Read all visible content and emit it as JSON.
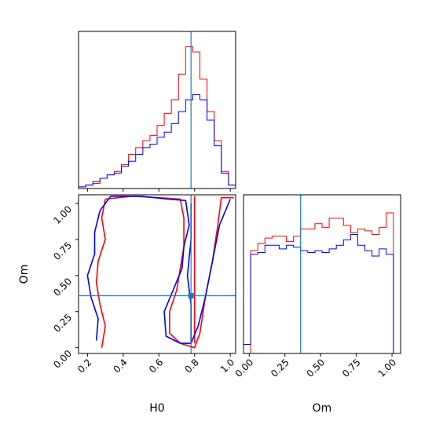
{
  "chart_data": {
    "type": "corner",
    "parameters": [
      "H0",
      "Om"
    ],
    "truths": {
      "H0": 0.78,
      "Om": 0.36
    },
    "colors": {
      "series_a": "#ff0000",
      "series_b": "#0000ff",
      "truth": "#1f77b4",
      "axes": "#000000"
    },
    "axes": {
      "H0": {
        "xlim": [
          0.15,
          1.03
        ],
        "xticks": [
          "0.2",
          "0.4",
          "0.6",
          "0.8",
          "1.0"
        ],
        "xtick_values": [
          0.2,
          0.4,
          0.6,
          0.8,
          1.0
        ]
      },
      "Om": {
        "lim": [
          -0.04,
          1.06
        ],
        "ticks": [
          "0.00",
          "0.25",
          "0.50",
          "0.75",
          "1.00"
        ],
        "tick_values": [
          0.0,
          0.25,
          0.5,
          0.75,
          1.0
        ]
      }
    },
    "panels": [
      {
        "id": "hist_H0",
        "type": "histogram",
        "x_param": "H0",
        "bin_edges": [
          0.15,
          0.19,
          0.23,
          0.27,
          0.31,
          0.35,
          0.39,
          0.43,
          0.47,
          0.51,
          0.55,
          0.59,
          0.63,
          0.67,
          0.71,
          0.75,
          0.79,
          0.83,
          0.87,
          0.91,
          0.95,
          0.99,
          1.03
        ],
        "series": [
          {
            "values": [
              0.01,
              0.02,
              0.03,
              0.06,
              0.08,
              0.1,
              0.14,
              0.2,
              0.24,
              0.28,
              0.31,
              0.37,
              0.44,
              0.52,
              0.67,
              0.83,
              0.8,
              0.64,
              0.45,
              0.28,
              0.1,
              0.02
            ],
            "color_key": "series_a"
          },
          {
            "values": [
              0.01,
              0.02,
              0.04,
              0.06,
              0.08,
              0.09,
              0.13,
              0.16,
              0.2,
              0.24,
              0.26,
              0.3,
              0.33,
              0.38,
              0.45,
              0.52,
              0.55,
              0.52,
              0.4,
              0.25,
              0.09,
              0.02
            ],
            "color_key": "series_b"
          }
        ]
      },
      {
        "id": "contour_H0_Om",
        "type": "contour",
        "x_param": "H0",
        "y_param": "Om",
        "series": [
          {
            "color_key": "series_a",
            "levels": [
              {
                "points": [
                  [
                    0.3,
                    1.03
                  ],
                  [
                    0.45,
                    1.05
                  ],
                  [
                    0.6,
                    1.04
                  ],
                  [
                    0.72,
                    1.03
                  ],
                  [
                    0.74,
                    0.9
                  ],
                  [
                    0.74,
                    0.7
                  ],
                  [
                    0.72,
                    0.55
                  ],
                  [
                    0.7,
                    0.4
                  ],
                  [
                    0.66,
                    0.25
                  ],
                  [
                    0.66,
                    0.1
                  ],
                  [
                    0.72,
                    0.03
                  ],
                  [
                    0.8,
                    0.0
                  ],
                  [
                    0.83,
                    0.1
                  ],
                  [
                    0.86,
                    0.35
                  ],
                  [
                    0.9,
                    0.6
                  ],
                  [
                    0.93,
                    0.85
                  ],
                  [
                    0.95,
                    1.04
                  ],
                  [
                    1.02,
                    1.04
                  ]
                ]
              },
              {
                "points": [
                  [
                    0.28,
                    0.0
                  ],
                  [
                    0.3,
                    0.15
                  ],
                  [
                    0.27,
                    0.3
                  ],
                  [
                    0.25,
                    0.45
                  ],
                  [
                    0.26,
                    0.6
                  ],
                  [
                    0.3,
                    0.75
                  ],
                  [
                    0.28,
                    0.9
                  ],
                  [
                    0.3,
                    1.03
                  ]
                ]
              },
              {
                "points": [
                  [
                    0.8,
                    0.03
                  ],
                  [
                    0.8,
                    0.15
                  ],
                  [
                    0.8,
                    0.35
                  ],
                  [
                    0.8,
                    0.6
                  ],
                  [
                    0.8,
                    0.85
                  ],
                  [
                    0.8,
                    1.05
                  ]
                ]
              }
            ]
          },
          {
            "color_key": "series_b",
            "levels": [
              {
                "points": [
                  [
                    0.33,
                    1.05
                  ],
                  [
                    0.5,
                    1.05
                  ],
                  [
                    0.65,
                    1.03
                  ],
                  [
                    0.75,
                    1.02
                  ],
                  [
                    0.77,
                    0.85
                  ],
                  [
                    0.74,
                    0.7
                  ],
                  [
                    0.73,
                    0.55
                  ],
                  [
                    0.68,
                    0.4
                  ],
                  [
                    0.63,
                    0.25
                  ],
                  [
                    0.64,
                    0.08
                  ],
                  [
                    0.72,
                    0.03
                  ],
                  [
                    0.78,
                    0.03
                  ],
                  [
                    0.82,
                    0.15
                  ],
                  [
                    0.86,
                    0.35
                  ],
                  [
                    0.9,
                    0.6
                  ],
                  [
                    0.94,
                    0.85
                  ],
                  [
                    1.0,
                    1.03
                  ]
                ]
              },
              {
                "points": [
                  [
                    0.25,
                    0.05
                  ],
                  [
                    0.26,
                    0.2
                  ],
                  [
                    0.22,
                    0.35
                  ],
                  [
                    0.2,
                    0.5
                  ],
                  [
                    0.24,
                    0.65
                  ],
                  [
                    0.24,
                    0.8
                  ],
                  [
                    0.27,
                    0.95
                  ],
                  [
                    0.33,
                    1.05
                  ]
                ]
              },
              {
                "points": [
                  [
                    0.78,
                    0.05
                  ],
                  [
                    0.78,
                    0.3
                  ],
                  [
                    0.76,
                    0.5
                  ],
                  [
                    0.78,
                    0.75
                  ],
                  [
                    0.78,
                    1.0
                  ]
                ]
              }
            ]
          }
        ]
      },
      {
        "id": "hist_Om",
        "type": "histogram",
        "x_param": "Om",
        "bin_edges": [
          -0.04,
          0.01,
          0.06,
          0.11,
          0.16,
          0.21,
          0.26,
          0.31,
          0.36,
          0.41,
          0.46,
          0.51,
          0.56,
          0.61,
          0.66,
          0.71,
          0.76,
          0.81,
          0.86,
          0.91,
          0.96,
          1.01,
          1.06
        ],
        "series": [
          {
            "values": [
              0.0,
              0.57,
              0.61,
              0.64,
              0.65,
              0.65,
              0.62,
              0.65,
              0.69,
              0.69,
              0.72,
              0.7,
              0.75,
              0.75,
              0.71,
              0.67,
              0.69,
              0.68,
              0.66,
              0.7,
              0.78,
              0.0
            ],
            "color_key": "series_a"
          },
          {
            "values": [
              0.05,
              0.55,
              0.56,
              0.6,
              0.6,
              0.58,
              0.6,
              0.59,
              0.57,
              0.56,
              0.57,
              0.56,
              0.58,
              0.6,
              0.63,
              0.66,
              0.6,
              0.57,
              0.54,
              0.58,
              0.55,
              0.0
            ],
            "color_key": "series_b"
          }
        ]
      }
    ],
    "xlabels": {
      "H0": "H0",
      "Om": "Om"
    },
    "ylabels": {
      "Om": "Om"
    }
  }
}
